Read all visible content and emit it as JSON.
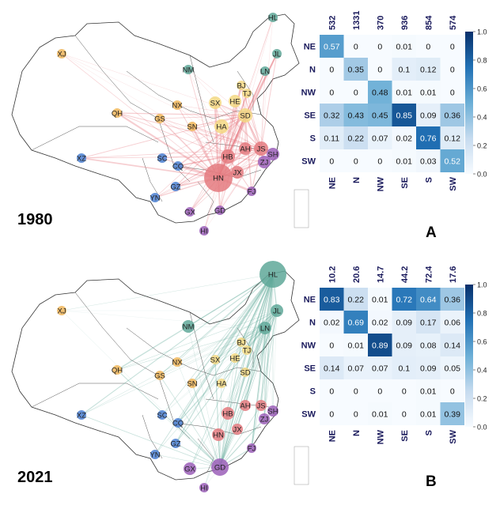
{
  "panels": [
    {
      "year": "1980",
      "letter": "A",
      "matrix": {
        "col_totals": [
          "532",
          "1331",
          "370",
          "936",
          "854",
          "574"
        ],
        "rows": [
          "NE",
          "N",
          "NW",
          "SE",
          "S",
          "SW"
        ],
        "cols": [
          "NE",
          "N",
          "NW",
          "SE",
          "S",
          "SW"
        ],
        "cells": [
          [
            "0.57",
            "0",
            "0",
            "0.01",
            "0",
            "0"
          ],
          [
            "0",
            "0.35",
            "0",
            "0.1",
            "0.12",
            "0"
          ],
          [
            "0",
            "0",
            "0.48",
            "0.01",
            "0.01",
            "0"
          ],
          [
            "0.32",
            "0.43",
            "0.45",
            "0.85",
            "0.09",
            "0.36"
          ],
          [
            "0.11",
            "0.22",
            "0.07",
            "0.02",
            "0.76",
            "0.12"
          ],
          [
            "0",
            "0",
            "0",
            "0.01",
            "0.03",
            "0.52"
          ]
        ],
        "colorbar_ticks": [
          "0.0",
          "0.2",
          "0.4",
          "0.6",
          "0.8",
          "1.0"
        ]
      },
      "nodes": [
        {
          "id": "HL",
          "c": "#5fa899"
        },
        {
          "id": "JL",
          "c": "#5fa899"
        },
        {
          "id": "LN",
          "c": "#5fa899"
        },
        {
          "id": "NM",
          "c": "#5fa899"
        },
        {
          "id": "BJ",
          "c": "#f3d882"
        },
        {
          "id": "TJ",
          "c": "#f3d882"
        },
        {
          "id": "HE",
          "c": "#f3d882"
        },
        {
          "id": "SX",
          "c": "#f3d882"
        },
        {
          "id": "SD",
          "c": "#f3d882"
        },
        {
          "id": "HA",
          "c": "#f3d882"
        },
        {
          "id": "XJ",
          "c": "#f0b65a"
        },
        {
          "id": "QH",
          "c": "#f0b65a"
        },
        {
          "id": "GS",
          "c": "#f0b65a"
        },
        {
          "id": "NX",
          "c": "#f0b65a"
        },
        {
          "id": "SN",
          "c": "#f0b65a"
        },
        {
          "id": "XZ",
          "c": "#4a7fd1"
        },
        {
          "id": "SC",
          "c": "#4a7fd1"
        },
        {
          "id": "CQ",
          "c": "#4a7fd1"
        },
        {
          "id": "GZ",
          "c": "#4a7fd1"
        },
        {
          "id": "YN",
          "c": "#4a7fd1"
        },
        {
          "id": "HB",
          "c": "#e47a7f"
        },
        {
          "id": "AH",
          "c": "#e47a7f"
        },
        {
          "id": "JS",
          "c": "#e47a7f"
        },
        {
          "id": "SH",
          "c": "#9b5fb8"
        },
        {
          "id": "ZJ",
          "c": "#9b5fb8"
        },
        {
          "id": "HN",
          "c": "#e47a7f"
        },
        {
          "id": "JX",
          "c": "#e47a7f"
        },
        {
          "id": "FJ",
          "c": "#9b5fb8"
        },
        {
          "id": "GD",
          "c": "#9b5fb8"
        },
        {
          "id": "GX",
          "c": "#9b5fb8"
        },
        {
          "id": "HI",
          "c": "#9b5fb8"
        }
      ],
      "edge_color": "#e4727a"
    },
    {
      "year": "2021",
      "letter": "B",
      "matrix": {
        "col_totals": [
          "10.2",
          "20.6",
          "14.7",
          "44.2",
          "72.4",
          "17.6"
        ],
        "rows": [
          "NE",
          "N",
          "NW",
          "SE",
          "S",
          "SW"
        ],
        "cols": [
          "NE",
          "N",
          "NW",
          "SE",
          "S",
          "SW"
        ],
        "cells": [
          [
            "0.83",
            "0.22",
            "0.01",
            "0.72",
            "0.64",
            "0.36"
          ],
          [
            "0.02",
            "0.69",
            "0.02",
            "0.09",
            "0.17",
            "0.06"
          ],
          [
            "0",
            "0.01",
            "0.89",
            "0.09",
            "0.08",
            "0.14"
          ],
          [
            "0.14",
            "0.07",
            "0.07",
            "0.1",
            "0.09",
            "0.05"
          ],
          [
            "0",
            "0",
            "0",
            "0",
            "0.01",
            "0"
          ],
          [
            "0",
            "0",
            "0.01",
            "0",
            "0.01",
            "0.39"
          ]
        ],
        "colorbar_ticks": [
          "0.0",
          "0.2",
          "0.4",
          "0.6",
          "0.8",
          "1.0"
        ]
      },
      "nodes": [
        {
          "id": "HL",
          "c": "#5fa899"
        },
        {
          "id": "JL",
          "c": "#5fa899"
        },
        {
          "id": "LN",
          "c": "#5fa899"
        },
        {
          "id": "NM",
          "c": "#5fa899"
        },
        {
          "id": "BJ",
          "c": "#f3d882"
        },
        {
          "id": "TJ",
          "c": "#f3d882"
        },
        {
          "id": "HE",
          "c": "#f3d882"
        },
        {
          "id": "SX",
          "c": "#f3d882"
        },
        {
          "id": "SD",
          "c": "#f3d882"
        },
        {
          "id": "HA",
          "c": "#f3d882"
        },
        {
          "id": "XJ",
          "c": "#f0b65a"
        },
        {
          "id": "QH",
          "c": "#f0b65a"
        },
        {
          "id": "GS",
          "c": "#f0b65a"
        },
        {
          "id": "NX",
          "c": "#f0b65a"
        },
        {
          "id": "SN",
          "c": "#f0b65a"
        },
        {
          "id": "XZ",
          "c": "#4a7fd1"
        },
        {
          "id": "SC",
          "c": "#4a7fd1"
        },
        {
          "id": "CQ",
          "c": "#4a7fd1"
        },
        {
          "id": "GZ",
          "c": "#4a7fd1"
        },
        {
          "id": "YN",
          "c": "#4a7fd1"
        },
        {
          "id": "HB",
          "c": "#e47a7f"
        },
        {
          "id": "AH",
          "c": "#e47a7f"
        },
        {
          "id": "JS",
          "c": "#e47a7f"
        },
        {
          "id": "SH",
          "c": "#9b5fb8"
        },
        {
          "id": "ZJ",
          "c": "#9b5fb8"
        },
        {
          "id": "HN",
          "c": "#e47a7f"
        },
        {
          "id": "JX",
          "c": "#e47a7f"
        },
        {
          "id": "FJ",
          "c": "#9b5fb8"
        },
        {
          "id": "GD",
          "c": "#9b5fb8"
        },
        {
          "id": "GX",
          "c": "#9b5fb8"
        },
        {
          "id": "HI",
          "c": "#9b5fb8"
        }
      ],
      "edge_color": "#5fa899"
    }
  ],
  "chart_data": [
    {
      "type": "heatmap",
      "title": "",
      "xlabel": "",
      "ylabel": "",
      "x": [
        "NE",
        "N",
        "NW",
        "SE",
        "S",
        "SW"
      ],
      "y": [
        "NE",
        "N",
        "NW",
        "SE",
        "S",
        "SW"
      ],
      "column_totals": [
        532,
        1331,
        370,
        936,
        854,
        574
      ],
      "values": [
        [
          0.57,
          0,
          0,
          0.01,
          0,
          0
        ],
        [
          0,
          0.35,
          0,
          0.1,
          0.12,
          0
        ],
        [
          0,
          0,
          0.48,
          0.01,
          0.01,
          0
        ],
        [
          0.32,
          0.43,
          0.45,
          0.85,
          0.09,
          0.36
        ],
        [
          0.11,
          0.22,
          0.07,
          0.02,
          0.76,
          0.12
        ],
        [
          0,
          0,
          0,
          0.01,
          0.03,
          0.52
        ]
      ],
      "color_range": [
        0,
        1
      ],
      "colormap": "Blues"
    },
    {
      "type": "heatmap",
      "title": "",
      "xlabel": "",
      "ylabel": "",
      "x": [
        "NE",
        "N",
        "NW",
        "SE",
        "S",
        "SW"
      ],
      "y": [
        "NE",
        "N",
        "NW",
        "SE",
        "S",
        "SW"
      ],
      "column_totals": [
        10.2,
        20.6,
        14.7,
        44.2,
        72.4,
        17.6
      ],
      "values": [
        [
          0.83,
          0.22,
          0.01,
          0.72,
          0.64,
          0.36
        ],
        [
          0.02,
          0.69,
          0.02,
          0.09,
          0.17,
          0.06
        ],
        [
          0,
          0.01,
          0.89,
          0.09,
          0.08,
          0.14
        ],
        [
          0.14,
          0.07,
          0.07,
          0.1,
          0.09,
          0.05
        ],
        [
          0,
          0,
          0,
          0,
          0.01,
          0
        ],
        [
          0,
          0,
          0.01,
          0,
          0.01,
          0.39
        ]
      ],
      "color_range": [
        0,
        1
      ],
      "colormap": "Blues"
    }
  ]
}
